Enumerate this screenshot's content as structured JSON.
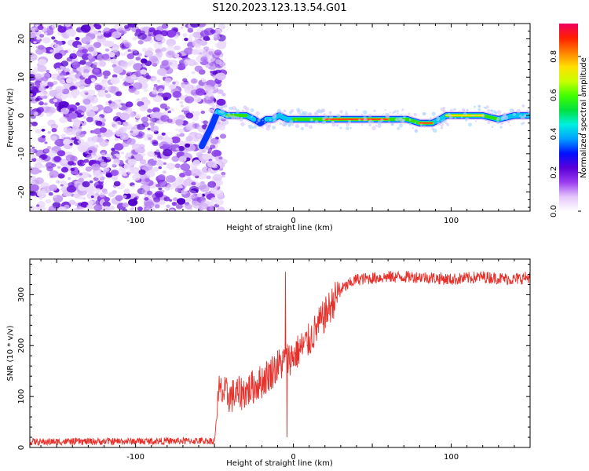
{
  "title": "S120.2023.123.13.54.G01",
  "chart_data": [
    {
      "type": "heatmap",
      "xlabel": "Height of straight line (km)",
      "ylabel": "Frequency (Hz)",
      "xlim": [
        -167,
        150
      ],
      "ylim": [
        -25,
        24
      ],
      "xticks": [
        -100,
        0,
        100
      ],
      "yticks": [
        -20,
        -10,
        0,
        10,
        20
      ],
      "colorbar": {
        "label": "Normalized spectral amplitude",
        "range": [
          0,
          0.97
        ],
        "ticks": [
          "0.0",
          "0.2",
          "0.4",
          "0.6",
          "0.8"
        ],
        "colors": [
          "#ffffff",
          "#e5c6fb",
          "#9a3cf0",
          "#5a00d8",
          "#0010ff",
          "#00a0ff",
          "#00f0e0",
          "#00e040",
          "#40ff00",
          "#c8ff00",
          "#ffe000",
          "#ff8000",
          "#ff2000",
          "#f00060"
        ]
      },
      "noise_region_x": [
        -167,
        -48
      ],
      "ridge": {
        "x": [
          -58,
          -52,
          -48,
          -42,
          -36,
          -30,
          -25,
          -21,
          -17,
          -13,
          -9,
          -4,
          0,
          10,
          20,
          40,
          60,
          72,
          80,
          88,
          93,
          97,
          110,
          120,
          130,
          140,
          150
        ],
        "freq": [
          -8,
          -3,
          1,
          0,
          0,
          0,
          -1,
          -2,
          -1,
          -1,
          0,
          -1,
          -1,
          -1,
          -1,
          -1,
          -1,
          -1,
          -2,
          -2,
          -1,
          0,
          0,
          0,
          -1,
          0,
          0
        ],
        "peak_amplitude": [
          0.35,
          0.4,
          0.55,
          0.75,
          0.8,
          0.7,
          0.65,
          0.5,
          0.6,
          0.55,
          0.65,
          0.6,
          0.7,
          0.7,
          0.85,
          0.9,
          0.85,
          0.7,
          0.85,
          0.85,
          0.6,
          0.8,
          0.9,
          0.8,
          0.7,
          0.6,
          0.55
        ]
      }
    },
    {
      "type": "line",
      "xlabel": "Height of straight line (km)",
      "ylabel": "SNR (10 * v/v)",
      "xlim": [
        -167,
        150
      ],
      "ylim": [
        0,
        370
      ],
      "xticks": [
        -100,
        0,
        100
      ],
      "yticks": [
        0,
        100,
        200,
        300
      ],
      "color": "#e8302a",
      "envelope": {
        "x": [
          -167,
          -50,
          -47,
          -40,
          -30,
          -20,
          -10,
          0,
          10,
          20,
          30,
          40,
          60,
          80,
          100,
          120,
          140,
          150
        ],
        "y": [
          10,
          12,
          110,
          100,
          110,
          130,
          160,
          180,
          210,
          260,
          310,
          330,
          335,
          335,
          330,
          335,
          330,
          335
        ]
      },
      "noise_amplitude": [
        8,
        35,
        12
      ],
      "spikes": [
        {
          "x": -5,
          "y": 345
        },
        {
          "x": -4,
          "y": 20
        }
      ]
    }
  ]
}
